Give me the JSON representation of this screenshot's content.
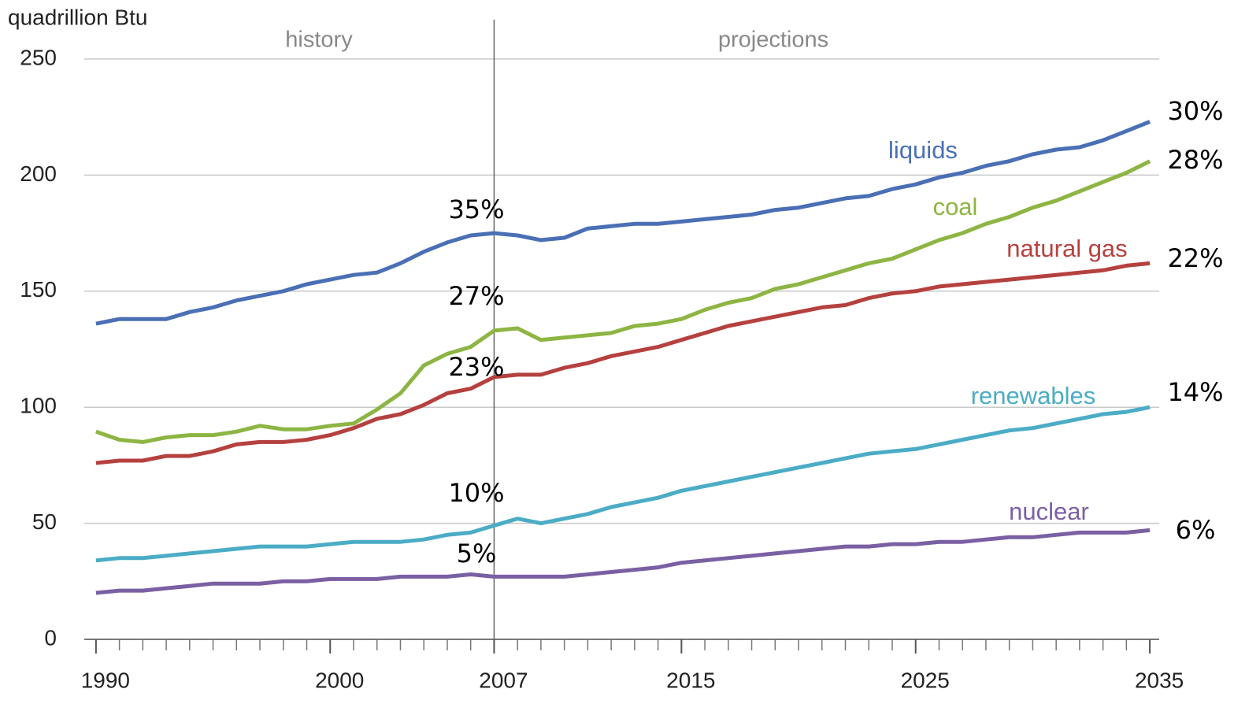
{
  "chart_data": {
    "type": "line",
    "y_label": "quadrillion Btu",
    "annotations": [
      "history",
      "projections"
    ],
    "divider_x": 2007,
    "x": [
      1990,
      1991,
      1992,
      1993,
      1994,
      1995,
      1996,
      1997,
      1998,
      1999,
      2000,
      2001,
      2002,
      2003,
      2004,
      2005,
      2006,
      2007,
      2008,
      2009,
      2010,
      2011,
      2012,
      2013,
      2014,
      2015,
      2016,
      2017,
      2018,
      2019,
      2020,
      2021,
      2022,
      2023,
      2024,
      2025,
      2026,
      2027,
      2028,
      2029,
      2030,
      2031,
      2032,
      2033,
      2034,
      2035
    ],
    "xlim": [
      1989.5,
      2035.4
    ],
    "xticks": [
      1990,
      2000,
      2007,
      2015,
      2025,
      2035
    ],
    "ylim": [
      0,
      250
    ],
    "yticks": [
      0,
      50,
      100,
      150,
      200,
      250
    ],
    "grid": true,
    "series": [
      {
        "name": "liquids",
        "color": "#4a6fb5",
        "share_2007": "35%",
        "share_2035": "30%",
        "values": [
          136,
          138,
          138,
          138,
          141,
          143,
          146,
          148,
          150,
          153,
          155,
          157,
          158,
          162,
          167,
          171,
          174,
          175,
          174,
          172,
          173,
          177,
          178,
          179,
          179,
          180,
          181,
          182,
          183,
          185,
          186,
          188,
          190,
          191,
          194,
          196,
          199,
          201,
          204,
          206,
          209,
          211,
          212,
          215,
          219,
          223
        ]
      },
      {
        "name": "coal",
        "color": "#8db543",
        "share_2007": "27%",
        "share_2035": "28%",
        "values": [
          89.5,
          86,
          85,
          87,
          88,
          88,
          89.5,
          92,
          90.5,
          90.5,
          92,
          93,
          99,
          106,
          118,
          123,
          126,
          133,
          134,
          129,
          130,
          131,
          132,
          135,
          136,
          138,
          142,
          145,
          147,
          151,
          153,
          156,
          159,
          162,
          164,
          168,
          172,
          175,
          179,
          182,
          186,
          189,
          193,
          197,
          201,
          206
        ]
      },
      {
        "name": "natural gas",
        "color": "#b5413f",
        "share_2007": "23%",
        "share_2035": "22%",
        "values": [
          76,
          77,
          77,
          79,
          79,
          81,
          84,
          85,
          85,
          86,
          88,
          91,
          95,
          97,
          101,
          106,
          108,
          113,
          114,
          114,
          117,
          119,
          122,
          124,
          126,
          129,
          132,
          135,
          137,
          139,
          141,
          143,
          144,
          147,
          149,
          150,
          152,
          153,
          154,
          155,
          156,
          157,
          158,
          159,
          161,
          162
        ]
      },
      {
        "name": "renewables",
        "color": "#4bacc6",
        "share_2007": "10%",
        "share_2035": "14%",
        "values": [
          34,
          35,
          35,
          36,
          37,
          38,
          39,
          40,
          40,
          40,
          41,
          42,
          42,
          42,
          43,
          45,
          46,
          49,
          52,
          50,
          52,
          54,
          57,
          59,
          61,
          64,
          66,
          68,
          70,
          72,
          74,
          76,
          78,
          80,
          81,
          82,
          84,
          86,
          88,
          90,
          91,
          93,
          95,
          97,
          98,
          100
        ]
      },
      {
        "name": "nuclear",
        "color": "#7b5fa3",
        "share_2007": "5%",
        "share_2035": "6%",
        "values": [
          20,
          21,
          21,
          22,
          23,
          24,
          24,
          24,
          25,
          25,
          26,
          26,
          26,
          27,
          27,
          27,
          28,
          27,
          27,
          27,
          27,
          28,
          29,
          30,
          31,
          33,
          34,
          35,
          36,
          37,
          38,
          39,
          40,
          40,
          41,
          41,
          42,
          42,
          43,
          44,
          44,
          45,
          46,
          46,
          46,
          47
        ]
      }
    ]
  }
}
